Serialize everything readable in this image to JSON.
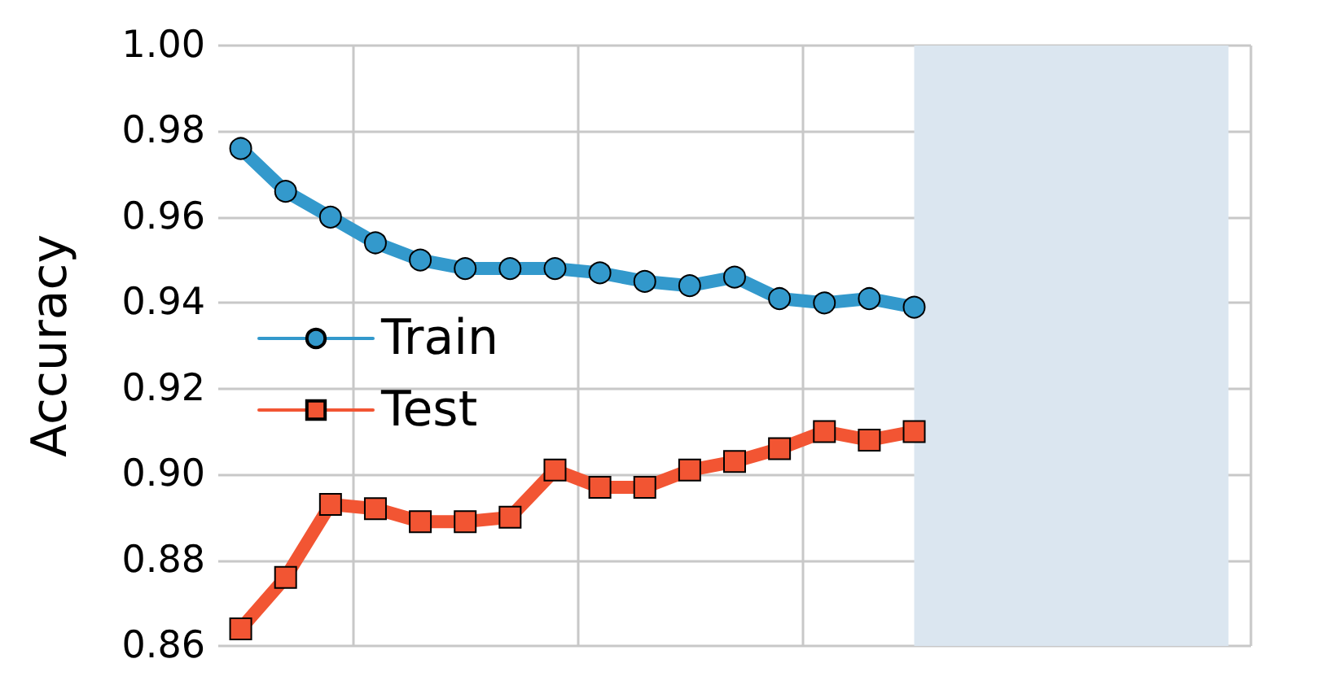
{
  "chart_data": {
    "type": "line",
    "ylabel": "Accuracy",
    "categories": [
      null,
      null,
      null,
      null,
      null,
      null,
      null,
      null,
      null,
      null,
      null,
      null,
      null,
      null,
      null,
      null,
      null,
      null,
      null,
      null,
      null,
      null,
      null
    ],
    "series": [
      {
        "name": "Train",
        "color": "#3399cc",
        "marker": "circle",
        "values": [
          0.976,
          0.966,
          0.96,
          0.954,
          0.95,
          0.948,
          0.948,
          0.948,
          0.947,
          0.945,
          0.944,
          0.946,
          0.941,
          0.94,
          0.941,
          0.939,
          null,
          null,
          null,
          null,
          null,
          null,
          null
        ]
      },
      {
        "name": "Test",
        "color": "#f25533",
        "marker": "square",
        "values": [
          0.864,
          0.876,
          0.893,
          0.892,
          0.889,
          0.889,
          0.89,
          0.901,
          0.897,
          0.897,
          0.901,
          0.903,
          0.906,
          0.91,
          0.908,
          0.91,
          null,
          null,
          null,
          null,
          null,
          null,
          null
        ]
      }
    ],
    "ylim": [
      0.86,
      1.0
    ],
    "yticks": [
      0.86,
      {
        "value": 0.88,
        "label": "0.88"
      },
      {
        "value": 0.9,
        "label": "0.90"
      },
      0.92,
      0.94,
      0.96,
      0.98,
      {
        "value": 1.0,
        "label": "1.00"
      }
    ],
    "grid": true,
    "legend": "left",
    "tick_labels": "y",
    "line_style": "solid"
  }
}
